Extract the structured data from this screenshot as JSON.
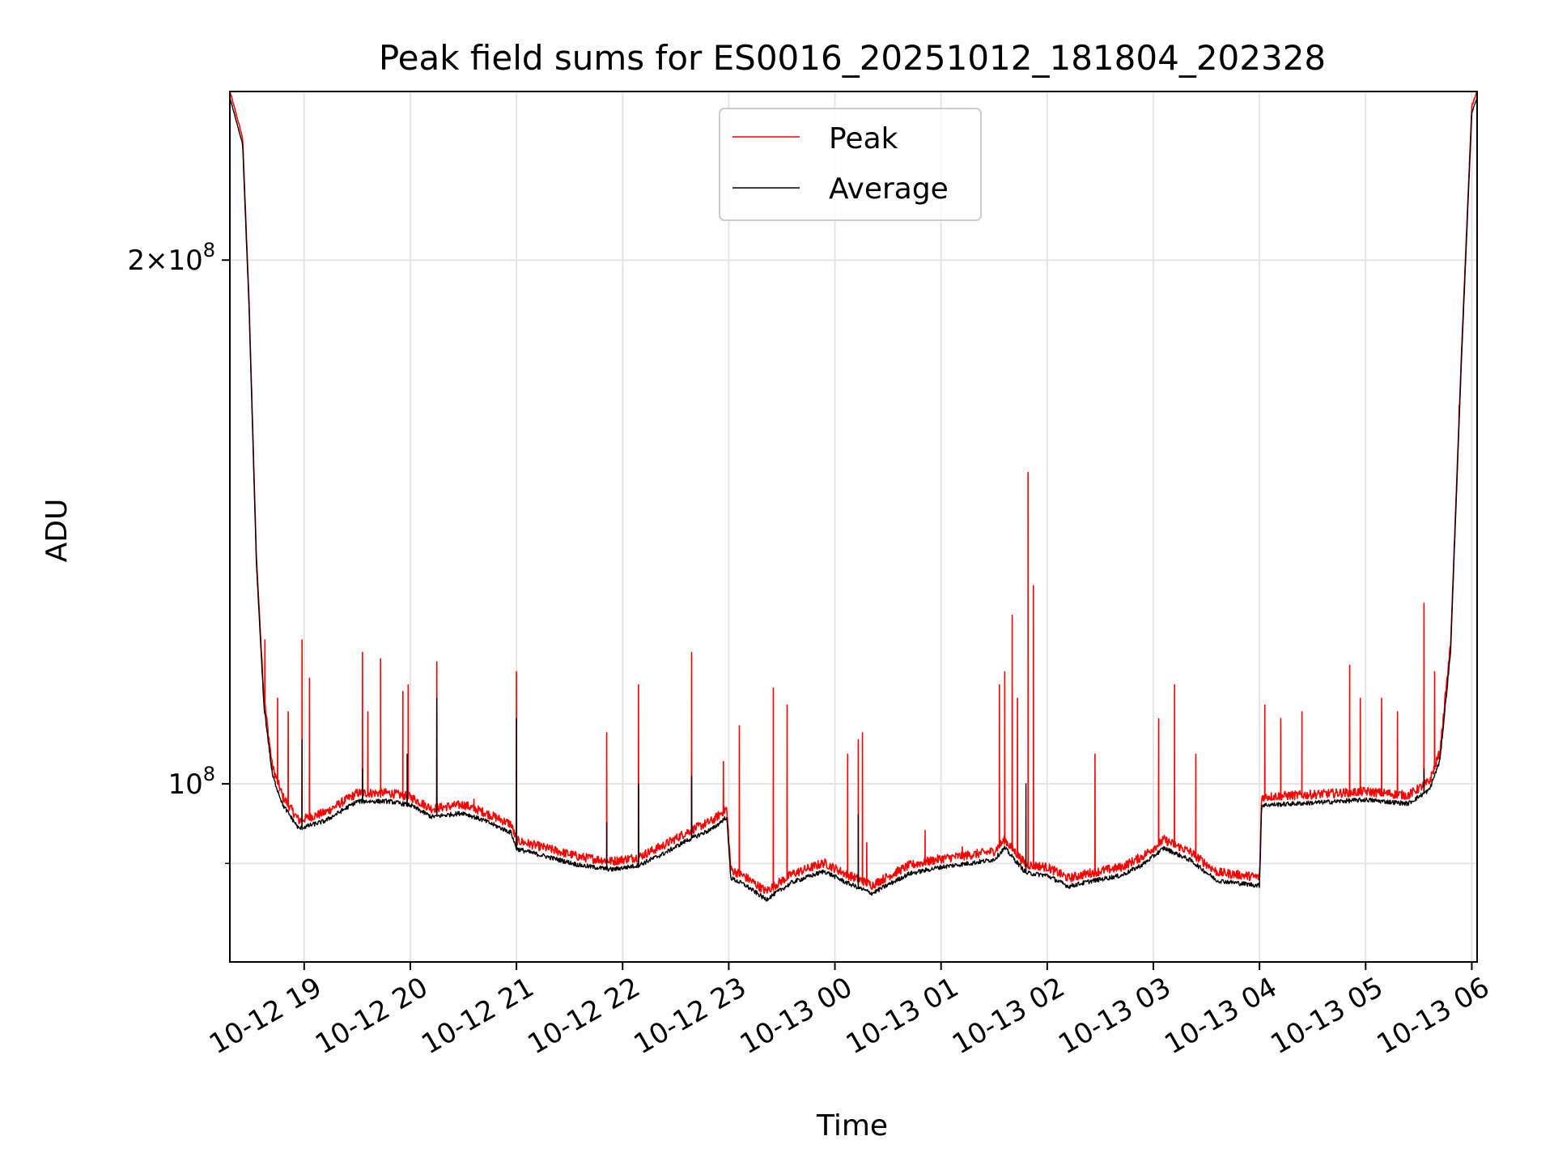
{
  "chart_data": {
    "type": "line",
    "title": "Peak field sums for ES0016_20251012_181804_202328",
    "xlabel": "Time",
    "ylabel": "ADU",
    "yscale": "log",
    "xlim": [
      18.3,
      30.05
    ],
    "ylim": [
      79000000,
      250000000
    ],
    "x_ticks": [
      {
        "value": 19,
        "label": "10-12 19"
      },
      {
        "value": 20,
        "label": "10-12 20"
      },
      {
        "value": 21,
        "label": "10-12 21"
      },
      {
        "value": 22,
        "label": "10-12 22"
      },
      {
        "value": 23,
        "label": "10-12 23"
      },
      {
        "value": 24,
        "label": "10-13 00"
      },
      {
        "value": 25,
        "label": "10-13 01"
      },
      {
        "value": 26,
        "label": "10-13 02"
      },
      {
        "value": 27,
        "label": "10-13 03"
      },
      {
        "value": 28,
        "label": "10-13 04"
      },
      {
        "value": 29,
        "label": "10-13 05"
      },
      {
        "value": 30,
        "label": "10-13 06"
      }
    ],
    "y_ticks_major": [
      {
        "value": 100000000,
        "mantissa": "",
        "base": "10",
        "exp": "8"
      },
      {
        "value": 200000000,
        "mantissa": "2×",
        "base": "10",
        "exp": "8"
      }
    ],
    "y_ticks_minor": [
      90000000
    ],
    "grid": true,
    "legend_position": "upper center",
    "series": [
      {
        "name": "Peak",
        "color": "#ff0000",
        "baseline": [
          [
            18.3,
            250000000
          ],
          [
            18.42,
            235000000
          ],
          [
            18.48,
            190000000
          ],
          [
            18.55,
            135000000
          ],
          [
            18.62,
            112000000
          ],
          [
            18.7,
            102000000
          ],
          [
            18.8,
            98000000
          ],
          [
            18.95,
            95000000
          ],
          [
            19.2,
            96000000
          ],
          [
            19.5,
            98500000
          ],
          [
            19.8,
            98500000
          ],
          [
            20.0,
            98000000
          ],
          [
            20.2,
            96500000
          ],
          [
            20.5,
            97000000
          ],
          [
            20.7,
            96000000
          ],
          [
            20.95,
            94500000
          ],
          [
            21.0,
            92500000
          ],
          [
            21.3,
            91500000
          ],
          [
            21.6,
            90500000
          ],
          [
            21.9,
            90000000
          ],
          [
            22.15,
            90500000
          ],
          [
            22.4,
            92000000
          ],
          [
            22.6,
            93500000
          ],
          [
            22.85,
            95000000
          ],
          [
            22.98,
            96500000
          ],
          [
            23.02,
            89000000
          ],
          [
            23.15,
            88200000
          ],
          [
            23.35,
            86500000
          ],
          [
            23.6,
            88500000
          ],
          [
            23.9,
            89800000
          ],
          [
            24.1,
            88500000
          ],
          [
            24.35,
            87200000
          ],
          [
            24.5,
            88200000
          ],
          [
            24.7,
            89500000
          ],
          [
            25.0,
            90300000
          ],
          [
            25.3,
            90800000
          ],
          [
            25.5,
            91200000
          ],
          [
            25.6,
            92600000
          ],
          [
            25.8,
            89600000
          ],
          [
            26.0,
            89300000
          ],
          [
            26.2,
            88000000
          ],
          [
            26.4,
            88600000
          ],
          [
            26.7,
            89300000
          ],
          [
            26.9,
            90600000
          ],
          [
            27.1,
            92600000
          ],
          [
            27.35,
            91100000
          ],
          [
            27.6,
            88700000
          ],
          [
            28.0,
            88100000
          ],
          [
            28.02,
            98000000
          ],
          [
            28.5,
            98300000
          ],
          [
            29.0,
            98700000
          ],
          [
            29.4,
            98200000
          ],
          [
            29.6,
            100000000
          ],
          [
            29.7,
            104000000
          ],
          [
            29.8,
            120000000
          ],
          [
            29.9,
            175000000
          ],
          [
            30.0,
            245000000
          ],
          [
            30.05,
            250000000
          ]
        ],
        "spikes": [
          [
            18.63,
            121000000
          ],
          [
            18.75,
            112000000
          ],
          [
            18.85,
            110000000
          ],
          [
            18.98,
            121000000
          ],
          [
            19.05,
            115000000
          ],
          [
            19.55,
            119000000
          ],
          [
            19.6,
            110000000
          ],
          [
            19.72,
            118000000
          ],
          [
            19.93,
            113000000
          ],
          [
            19.98,
            114000000
          ],
          [
            20.25,
            117500000
          ],
          [
            20.6,
            98000000
          ],
          [
            21.0,
            116000000
          ],
          [
            21.85,
            107000000
          ],
          [
            22.15,
            114000000
          ],
          [
            22.65,
            119000000
          ],
          [
            22.95,
            103000000
          ],
          [
            23.1,
            108000000
          ],
          [
            23.42,
            113500000
          ],
          [
            23.55,
            111000000
          ],
          [
            24.12,
            104000000
          ],
          [
            24.22,
            106000000
          ],
          [
            24.26,
            107000000
          ],
          [
            24.3,
            92500000
          ],
          [
            24.85,
            94000000
          ],
          [
            25.2,
            92000000
          ],
          [
            25.55,
            114000000
          ],
          [
            25.6,
            116000000
          ],
          [
            25.67,
            125000000
          ],
          [
            25.72,
            112000000
          ],
          [
            25.82,
            151000000
          ],
          [
            25.87,
            130000000
          ],
          [
            26.45,
            104000000
          ],
          [
            27.05,
            109000000
          ],
          [
            27.2,
            114000000
          ],
          [
            27.4,
            104000000
          ],
          [
            28.05,
            111000000
          ],
          [
            28.2,
            109000000
          ],
          [
            28.4,
            110000000
          ],
          [
            28.85,
            117000000
          ],
          [
            28.95,
            112000000
          ],
          [
            29.15,
            112000000
          ],
          [
            29.3,
            110000000
          ],
          [
            29.55,
            127000000
          ],
          [
            29.65,
            116000000
          ],
          [
            29.88,
            165000000
          ]
        ]
      },
      {
        "name": "Average",
        "color": "#000000",
        "offset_ratio": 0.992,
        "spikes": [
          [
            18.98,
            106000000
          ],
          [
            19.55,
            102000000
          ],
          [
            19.97,
            104000000
          ],
          [
            20.25,
            112000000
          ],
          [
            21.0,
            109000000
          ],
          [
            21.85,
            95000000
          ],
          [
            22.15,
            100000000
          ],
          [
            22.65,
            101000000
          ],
          [
            24.22,
            96000000
          ],
          [
            25.8,
            100000000
          ],
          [
            29.55,
            102000000
          ]
        ]
      }
    ]
  }
}
